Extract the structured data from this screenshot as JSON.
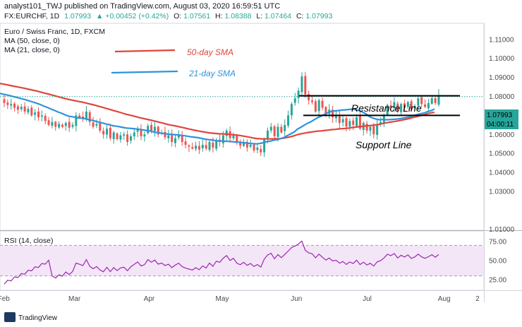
{
  "header": {
    "publish_line": "analyst101_TWJ published on TradingView.com, August 03, 2020 16:59:51 UTC",
    "ohlc_prefix": "FX:EURCHF, 1D",
    "last": "1.07993",
    "change": "▲ +0.00452 (+0.42%)",
    "o_label": "O:",
    "o_value": "1.07561",
    "h_label": "H:",
    "h_value": "1.08388",
    "l_label": "L:",
    "l_value": "1.07464",
    "c_label": "C:",
    "c_value": "1.07993"
  },
  "legend": {
    "title": "Euro / Swiss Franc, 1D, FXCM",
    "ma50": "MA (50, close, 0)",
    "ma21": "MA (21, close, 0)",
    "sma50_label": "50-day SMA",
    "sma21_label": "21-day SMA"
  },
  "annotations": {
    "resistance": "Resistance Line",
    "support": "Support Line"
  },
  "price_tag": {
    "price": "1.07993",
    "timer": "04:00:11"
  },
  "rsi": {
    "title": "RSI (14, close)"
  },
  "footer": {
    "brand": "TradingView"
  },
  "colors": {
    "up": "#26a69a",
    "down": "#ef5350",
    "sma50": "#e0453d",
    "sma21": "#2e93dc",
    "rsi": "#9c27b0",
    "rsi_band": "#f3e6f7"
  },
  "chart_data": [
    {
      "type": "candlestick",
      "ylim": [
        1.0095,
        1.1185
      ],
      "y_ticks": [
        "1.11000",
        "1.10000",
        "1.09000",
        "1.08000",
        "1.07000",
        "1.06000",
        "1.05000",
        "1.04000",
        "1.03000",
        "1.01000"
      ],
      "y_tick_values": [
        1.11,
        1.1,
        1.09,
        1.08,
        1.07,
        1.06,
        1.05,
        1.04,
        1.03,
        1.01
      ],
      "x_ticks": [
        "Feb",
        "Mar",
        "Apr",
        "May",
        "Jun",
        "Jul",
        "Aug",
        "2"
      ],
      "x_tick_values": [
        -0.7,
        20,
        42,
        63,
        85,
        106,
        128,
        139
      ],
      "close": [
        1.0765,
        1.0755,
        1.076,
        1.074,
        1.073,
        1.0745,
        1.072,
        1.0735,
        1.07,
        1.0715,
        1.069,
        1.07,
        1.067,
        1.065,
        1.0665,
        1.064,
        1.0655,
        1.064,
        1.066,
        1.0635,
        1.065,
        1.07,
        1.069,
        1.068,
        1.072,
        1.0665,
        1.064,
        1.0655,
        1.062,
        1.06,
        1.063,
        1.058,
        1.061,
        1.0575,
        1.0595,
        1.06,
        1.056,
        1.059,
        1.061,
        1.063,
        1.059,
        1.06,
        1.0645,
        1.062,
        1.064,
        1.06,
        1.061,
        1.0585,
        1.0595,
        1.056,
        1.058,
        1.0595,
        1.056,
        1.0545,
        1.0535,
        1.0525,
        1.054,
        1.052,
        1.0545,
        1.0525,
        1.056,
        1.053,
        1.057,
        1.056,
        1.0595,
        1.062,
        1.058,
        1.06,
        1.0555,
        1.054,
        1.056,
        1.053,
        1.0545,
        1.0515,
        1.053,
        1.0505,
        1.0575,
        1.062,
        1.064,
        1.059,
        1.064,
        1.061,
        1.065,
        1.07,
        1.076,
        1.079,
        1.083,
        1.0905,
        1.081,
        1.078,
        1.077,
        1.072,
        1.078,
        1.074,
        1.07,
        1.073,
        1.069,
        1.07,
        1.066,
        1.068,
        1.064,
        1.067,
        1.065,
        1.069,
        1.063,
        1.066,
        1.062,
        1.064,
        1.06,
        1.065,
        1.0665,
        1.07,
        1.0755,
        1.074,
        1.077,
        1.072,
        1.076,
        1.074,
        1.077,
        1.073,
        1.075,
        1.079,
        1.076,
        1.0745,
        1.0765,
        1.079,
        1.0765,
        1.0799
      ],
      "rsi_ylim": [
        12,
        88
      ],
      "rsi_ticks": [
        "75.00",
        "50.00",
        "25.00"
      ],
      "rsi_tick_values": [
        75,
        50,
        25
      ],
      "rsi_band": [
        30,
        70
      ]
    }
  ]
}
